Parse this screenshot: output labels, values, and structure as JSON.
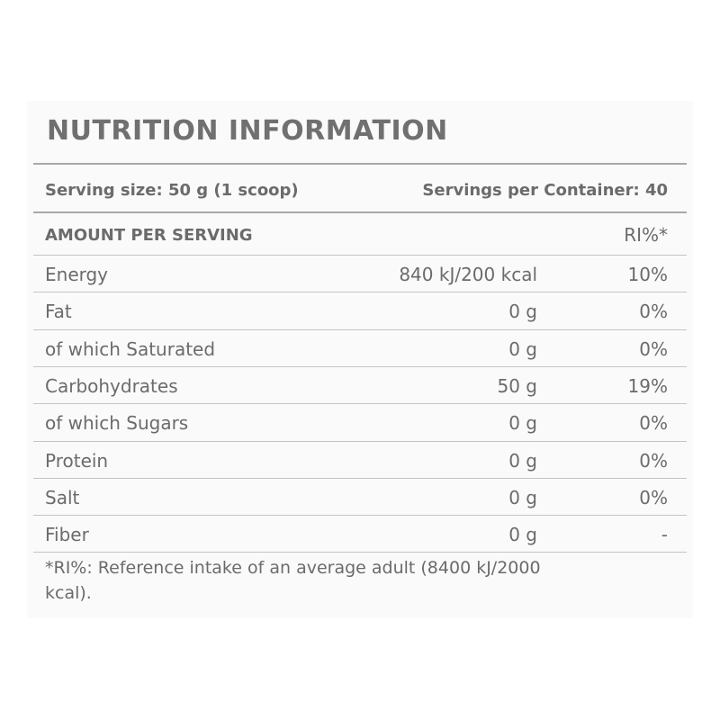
{
  "title": "NUTRITION INFORMATION",
  "serving_size": "Serving size: 50 g (1 scoop)",
  "servings_per_container": "Servings per Container: 40",
  "table": {
    "header": [
      "AMOUNT PER SERVING",
      "RI%*"
    ],
    "rows": [
      [
        "Energy",
        "840 kJ/200 kcal",
        "10%"
      ],
      [
        "Fat",
        "0 g",
        "0%"
      ],
      [
        "of which Saturated",
        "0 g",
        "0%"
      ],
      [
        "Carbohydrates",
        "50 g",
        "19%"
      ],
      [
        "of which Sugars",
        "0 g",
        "0%"
      ],
      [
        "Protein",
        "0 g",
        "0%"
      ],
      [
        "Salt",
        "0 g",
        "0%"
      ],
      [
        "Fiber",
        "0 g",
        "-"
      ]
    ]
  },
  "footnote": "*RI%: Reference intake of an average adult (8400 kJ/2000 kcal)."
}
